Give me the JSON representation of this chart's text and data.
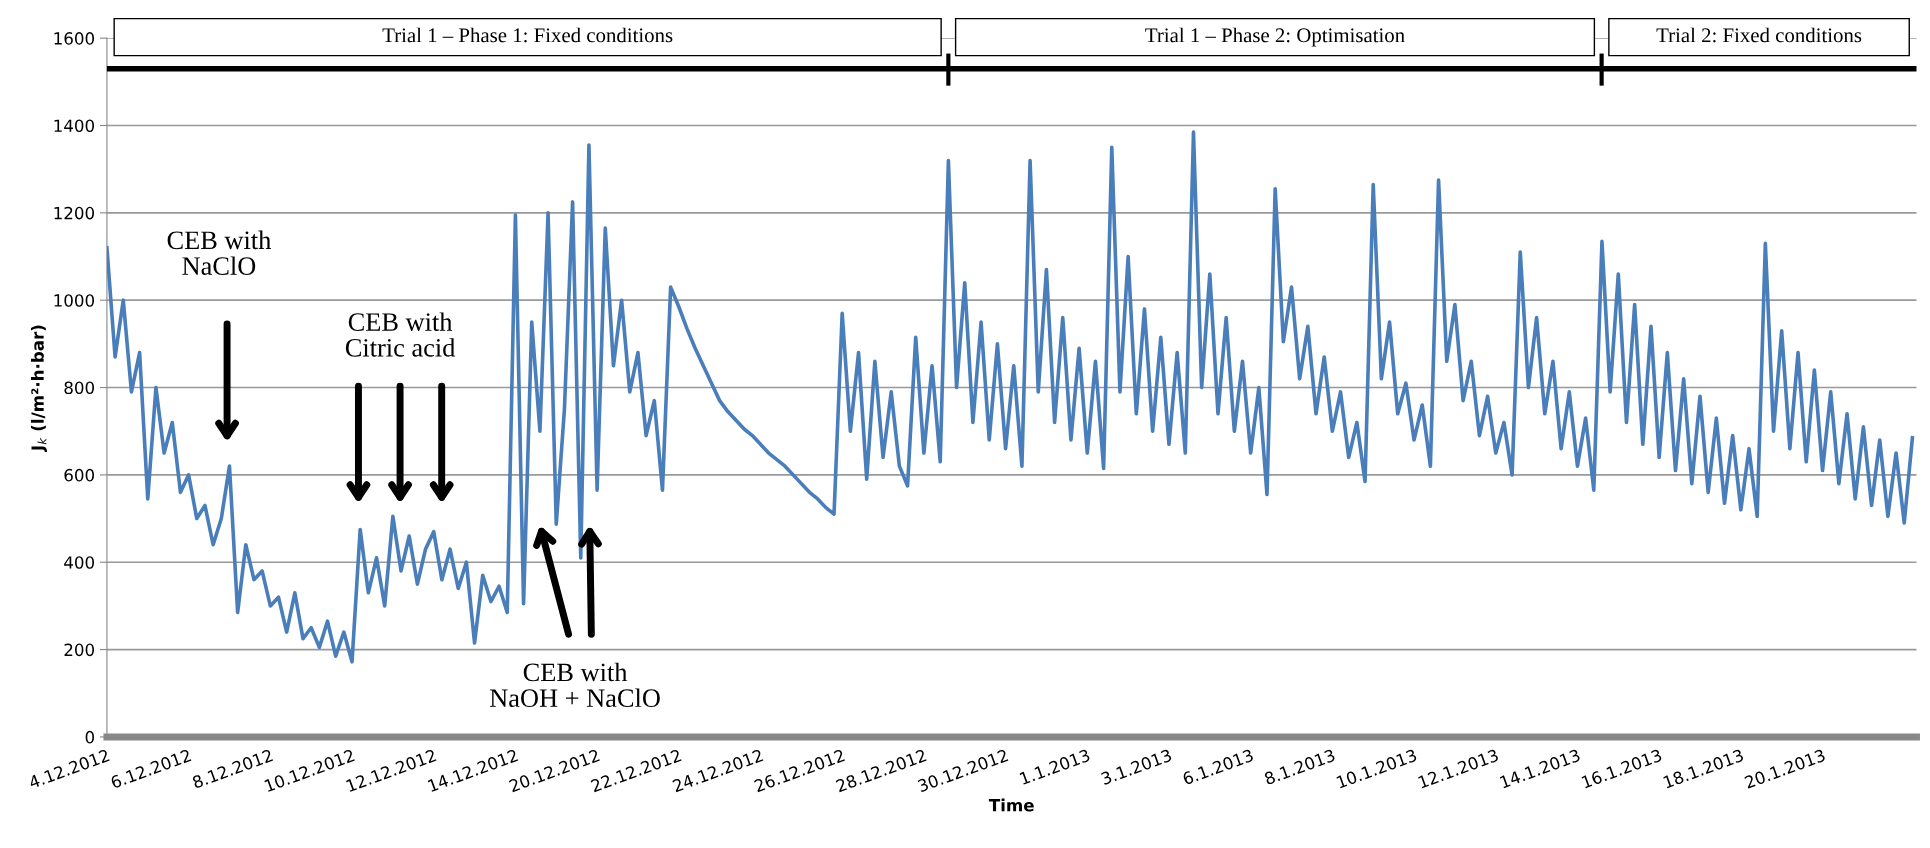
{
  "chart_data": {
    "type": "line",
    "xlabel": "Time",
    "ylabel": "J$_{k}$ (l/m²·h·bar)",
    "ylim": [
      0,
      1600
    ],
    "yticks": [
      0,
      200,
      400,
      600,
      800,
      1000,
      1200,
      1400,
      1600
    ],
    "categories": [
      "4.12.2012",
      null,
      null,
      null,
      null,
      null,
      null,
      null,
      null,
      null,
      "6.12.2012",
      null,
      null,
      null,
      null,
      null,
      null,
      null,
      null,
      null,
      "8.12.2012",
      null,
      null,
      null,
      null,
      null,
      null,
      null,
      null,
      null,
      "10.12.2012",
      null,
      null,
      null,
      null,
      null,
      null,
      null,
      null,
      null,
      "12.12.2012",
      null,
      null,
      null,
      null,
      null,
      null,
      null,
      null,
      null,
      "14.12.2012",
      null,
      null,
      null,
      null,
      null,
      null,
      null,
      null,
      null,
      "20.12.2012",
      null,
      null,
      null,
      null,
      null,
      null,
      null,
      null,
      null,
      "22.12.2012",
      null,
      null,
      null,
      null,
      null,
      null,
      null,
      null,
      null,
      "24.12.2012",
      null,
      null,
      null,
      null,
      null,
      null,
      null,
      null,
      null,
      "26.12.2012",
      null,
      null,
      null,
      null,
      null,
      null,
      null,
      null,
      null,
      "28.12.2012",
      null,
      null,
      null,
      null,
      null,
      null,
      null,
      null,
      null,
      "30.12.2012",
      null,
      null,
      null,
      null,
      null,
      null,
      null,
      null,
      null,
      "1.1.2013",
      null,
      null,
      null,
      null,
      null,
      null,
      null,
      null,
      null,
      "3.1.2013",
      null,
      null,
      null,
      null,
      null,
      null,
      null,
      null,
      null,
      "6.1.2013",
      null,
      null,
      null,
      null,
      null,
      null,
      null,
      null,
      null,
      "8.1.2013",
      null,
      null,
      null,
      null,
      null,
      null,
      null,
      null,
      null,
      "10.1.2013",
      null,
      null,
      null,
      null,
      null,
      null,
      null,
      null,
      null,
      "12.1.2013",
      null,
      null,
      null,
      null,
      null,
      null,
      null,
      null,
      null,
      "14.1.2013",
      null,
      null,
      null,
      null,
      null,
      null,
      null,
      null,
      null,
      "16.1.2013",
      null,
      null,
      null,
      null,
      null,
      null,
      null,
      null,
      null,
      "18.1.2013",
      null,
      null,
      null,
      null,
      null,
      null,
      null,
      null,
      null,
      "20.1.2013",
      null,
      null,
      null,
      null,
      null,
      null,
      null,
      null,
      null,
      null,
      null
    ],
    "ref_lines": [
      {
        "axis": "y",
        "value": 1530,
        "color": "#000000",
        "line_style": "solid"
      }
    ],
    "grid": "y",
    "marker": "none",
    "line_style": "solid",
    "series": [
      {
        "color": "#4a7ebb",
        "values": [
          1120,
          870,
          1000,
          790,
          880,
          545,
          800,
          650,
          720,
          560,
          600,
          500,
          530,
          440,
          500,
          620,
          285,
          440,
          360,
          380,
          300,
          320,
          240,
          330,
          225,
          250,
          205,
          265,
          185,
          240,
          172,
          475,
          330,
          410,
          300,
          505,
          380,
          460,
          350,
          430,
          470,
          360,
          430,
          340,
          400,
          215,
          370,
          310,
          345,
          285,
          1195,
          305,
          950,
          700,
          1200,
          487,
          750,
          1225,
          410,
          1355,
          565,
          1165,
          850,
          1000,
          790,
          880,
          690,
          770,
          565,
          1030,
          985,
          935,
          890,
          850,
          810,
          770,
          745,
          725,
          705,
          690,
          670,
          650,
          635,
          620,
          600,
          580,
          560,
          545,
          525,
          510,
          970,
          700,
          880,
          590,
          860,
          640,
          790,
          620,
          575,
          915,
          650,
          850,
          630,
          1320,
          800,
          1040,
          720,
          950,
          680,
          900,
          660,
          850,
          620,
          1320,
          790,
          1070,
          720,
          960,
          680,
          890,
          650,
          860,
          615,
          1350,
          790,
          1100,
          740,
          980,
          700,
          915,
          670,
          880,
          650,
          1385,
          800,
          1060,
          740,
          960,
          700,
          860,
          650,
          800,
          555,
          1255,
          905,
          1030,
          820,
          940,
          740,
          870,
          700,
          790,
          640,
          720,
          585,
          1265,
          820,
          950,
          740,
          810,
          680,
          760,
          620,
          1275,
          860,
          990,
          770,
          860,
          690,
          780,
          650,
          720,
          600,
          1110,
          800,
          960,
          740,
          860,
          660,
          790,
          620,
          730,
          565,
          1135,
          790,
          1060,
          720,
          990,
          670,
          940,
          640,
          880,
          610,
          820,
          580,
          780,
          560,
          730,
          535,
          690,
          520,
          660,
          505,
          1130,
          700,
          930,
          660,
          880,
          630,
          840,
          610,
          790,
          580,
          740,
          545,
          710,
          530,
          680,
          505,
          650,
          490,
          685
        ]
      }
    ],
    "annotations": [
      "Trial 1 – Phase 1: Fixed conditions",
      "Trial 1 – Phase 2: Optimisation",
      "Trial 2: Fixed conditions",
      "CEB with\nNaClO",
      "CEB with\nCitric acid",
      "CEB with\nNaOH + NaClO"
    ]
  }
}
